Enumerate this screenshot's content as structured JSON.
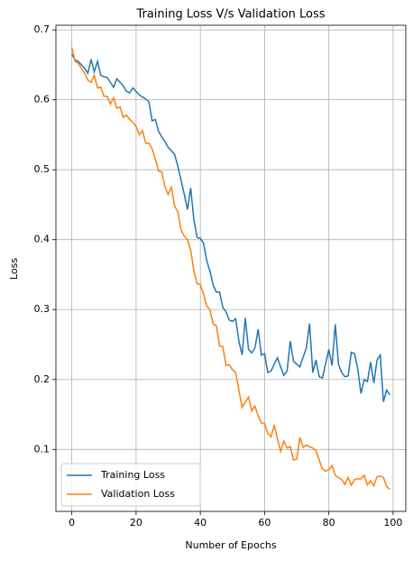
{
  "chart_data": {
    "type": "line",
    "title": "Training Loss V/s Validation Loss",
    "xlabel": "Number of Epochs",
    "ylabel": "Loss",
    "x": [
      0,
      1,
      2,
      3,
      4,
      5,
      6,
      7,
      8,
      9,
      10,
      11,
      12,
      13,
      14,
      15,
      16,
      17,
      18,
      19,
      20,
      21,
      22,
      23,
      24,
      25,
      26,
      27,
      28,
      29,
      30,
      31,
      32,
      33,
      34,
      35,
      36,
      37,
      38,
      39,
      40,
      41,
      42,
      43,
      44,
      45,
      46,
      47,
      48,
      49,
      50,
      51,
      52,
      53,
      54,
      55,
      56,
      57,
      58,
      59,
      60,
      61,
      62,
      63,
      64,
      65,
      66,
      67,
      68,
      69,
      70,
      71,
      72,
      73,
      74,
      75,
      76,
      77,
      78,
      79,
      80,
      81,
      82,
      83,
      84,
      85,
      86,
      87,
      88,
      89,
      90,
      91,
      92,
      93,
      94,
      95,
      96,
      97,
      98,
      99
    ],
    "series": [
      {
        "name": "Training Loss",
        "color": "#1f77b4",
        "values": [
          0.665,
          0.657,
          0.655,
          0.65,
          0.645,
          0.638,
          0.658,
          0.64,
          0.655,
          0.635,
          0.633,
          0.632,
          0.625,
          0.618,
          0.63,
          0.625,
          0.62,
          0.612,
          0.61,
          0.617,
          0.612,
          0.607,
          0.604,
          0.601,
          0.597,
          0.57,
          0.572,
          0.555,
          0.547,
          0.54,
          0.532,
          0.527,
          0.522,
          0.505,
          0.485,
          0.465,
          0.443,
          0.474,
          0.428,
          0.403,
          0.402,
          0.395,
          0.37,
          0.355,
          0.335,
          0.325,
          0.325,
          0.303,
          0.297,
          0.285,
          0.283,
          0.287,
          0.255,
          0.235,
          0.288,
          0.243,
          0.238,
          0.245,
          0.272,
          0.235,
          0.237,
          0.21,
          0.212,
          0.222,
          0.231,
          0.218,
          0.206,
          0.212,
          0.255,
          0.226,
          0.222,
          0.218,
          0.232,
          0.245,
          0.28,
          0.21,
          0.228,
          0.204,
          0.202,
          0.223,
          0.243,
          0.22,
          0.279,
          0.222,
          0.21,
          0.204,
          0.205,
          0.239,
          0.237,
          0.215,
          0.18,
          0.2,
          0.197,
          0.225,
          0.195,
          0.228,
          0.235,
          0.168,
          0.185,
          0.178
        ]
      },
      {
        "name": "Validation Loss",
        "color": "#ff7f0e",
        "values": [
          0.675,
          0.655,
          0.652,
          0.645,
          0.638,
          0.628,
          0.625,
          0.635,
          0.617,
          0.618,
          0.605,
          0.605,
          0.594,
          0.603,
          0.588,
          0.59,
          0.575,
          0.578,
          0.572,
          0.568,
          0.562,
          0.55,
          0.556,
          0.538,
          0.538,
          0.53,
          0.515,
          0.498,
          0.497,
          0.475,
          0.465,
          0.475,
          0.448,
          0.44,
          0.414,
          0.405,
          0.4,
          0.385,
          0.355,
          0.337,
          0.336,
          0.322,
          0.305,
          0.3,
          0.279,
          0.277,
          0.248,
          0.247,
          0.22,
          0.221,
          0.214,
          0.21,
          0.185,
          0.16,
          0.168,
          0.175,
          0.155,
          0.162,
          0.148,
          0.138,
          0.137,
          0.123,
          0.118,
          0.135,
          0.115,
          0.097,
          0.112,
          0.102,
          0.104,
          0.085,
          0.086,
          0.117,
          0.103,
          0.106,
          0.104,
          0.102,
          0.098,
          0.085,
          0.072,
          0.069,
          0.071,
          0.077,
          0.063,
          0.06,
          0.057,
          0.05,
          0.06,
          0.049,
          0.057,
          0.058,
          0.058,
          0.063,
          0.049,
          0.055,
          0.048,
          0.061,
          0.062,
          0.06,
          0.047,
          0.043
        ]
      }
    ],
    "xlim": [
      -4.95,
      103.95
    ],
    "ylim": [
      0.0114,
      0.7066
    ],
    "xticks": [
      0,
      20,
      40,
      60,
      80,
      100
    ],
    "yticks": [
      0.1,
      0.2,
      0.3,
      0.4,
      0.5,
      0.6,
      0.7
    ],
    "grid": true,
    "legend": "lower left"
  }
}
